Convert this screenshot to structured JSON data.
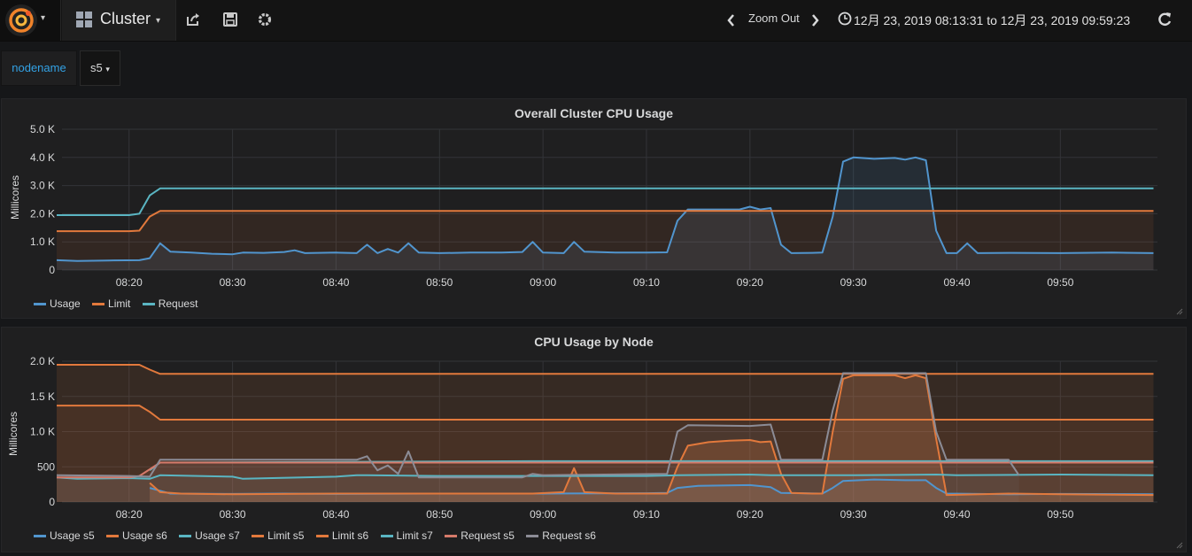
{
  "navbar": {
    "dashboard_title": "Cluster",
    "zoom_label": "Zoom Out",
    "time_range": "12月 23, 2019 08:13:31 to 12月 23, 2019 09:59:23"
  },
  "variables": {
    "label": "nodename",
    "value": "s5"
  },
  "colors": {
    "usage": "#5195ce",
    "orange": "#e2793c",
    "request": "#5ab5c2",
    "gray": "#8c8c96"
  },
  "panels": [
    {
      "title": "Overall Cluster CPU Usage",
      "ylabel": "Millicores",
      "legend": [
        {
          "name": "Usage",
          "color": "#5195ce"
        },
        {
          "name": "Limit",
          "color": "#e2793c"
        },
        {
          "name": "Request",
          "color": "#5ab5c2"
        }
      ]
    },
    {
      "title": "CPU Usage by Node",
      "ylabel": "Millicores",
      "legend": [
        {
          "name": "Usage s5",
          "color": "#5195ce"
        },
        {
          "name": "Usage s6",
          "color": "#e2793c"
        },
        {
          "name": "Usage s7",
          "color": "#5ab5c2"
        },
        {
          "name": "Limit s5",
          "color": "#e2793c"
        },
        {
          "name": "Limit s6",
          "color": "#e2793c"
        },
        {
          "name": "Limit s7",
          "color": "#5ab5c2"
        },
        {
          "name": "Request s5",
          "color": "#d67a6a"
        },
        {
          "name": "Request s6",
          "color": "#8c8c96"
        }
      ]
    }
  ],
  "chart_data": [
    {
      "type": "area",
      "title": "Overall Cluster CPU Usage",
      "ylabel": "Millicores",
      "xlim": [
        "08:13:31",
        "09:59:23"
      ],
      "ylim": [
        0,
        5000
      ],
      "xticks": [
        "08:20",
        "08:30",
        "08:40",
        "08:50",
        "09:00",
        "09:10",
        "09:20",
        "09:30",
        "09:40",
        "09:50"
      ],
      "yticks": [
        "0",
        "1.0 K",
        "2.0 K",
        "3.0 K",
        "4.0 K",
        "5.0 K"
      ],
      "grid": true,
      "legend_position": "bottom-left",
      "series": [
        {
          "name": "Usage",
          "color": "#5195ce",
          "points": [
            [
              "08:13",
              350
            ],
            [
              "08:15",
              320
            ],
            [
              "08:18",
              340
            ],
            [
              "08:21",
              350
            ],
            [
              "08:22",
              420
            ],
            [
              "08:23",
              950
            ],
            [
              "08:24",
              650
            ],
            [
              "08:26",
              620
            ],
            [
              "08:28",
              580
            ],
            [
              "08:30",
              560
            ],
            [
              "08:31",
              620
            ],
            [
              "08:33",
              610
            ],
            [
              "08:35",
              640
            ],
            [
              "08:36",
              700
            ],
            [
              "08:37",
              600
            ],
            [
              "08:40",
              620
            ],
            [
              "08:42",
              600
            ],
            [
              "08:43",
              900
            ],
            [
              "08:44",
              600
            ],
            [
              "08:45",
              750
            ],
            [
              "08:46",
              620
            ],
            [
              "08:47",
              950
            ],
            [
              "08:48",
              620
            ],
            [
              "08:50",
              600
            ],
            [
              "08:53",
              620
            ],
            [
              "08:56",
              620
            ],
            [
              "08:58",
              640
            ],
            [
              "08:59",
              1000
            ],
            [
              "09:00",
              620
            ],
            [
              "09:02",
              600
            ],
            [
              "09:03",
              1000
            ],
            [
              "09:04",
              650
            ],
            [
              "09:07",
              620
            ],
            [
              "09:10",
              620
            ],
            [
              "09:12",
              630
            ],
            [
              "09:13",
              1750
            ],
            [
              "09:14",
              2150
            ],
            [
              "09:17",
              2150
            ],
            [
              "09:19",
              2150
            ],
            [
              "09:20",
              2250
            ],
            [
              "09:21",
              2150
            ],
            [
              "09:22",
              2200
            ],
            [
              "09:23",
              900
            ],
            [
              "09:24",
              600
            ],
            [
              "09:26",
              610
            ],
            [
              "09:27",
              620
            ],
            [
              "09:28",
              1900
            ],
            [
              "09:29",
              3850
            ],
            [
              "09:30",
              4000
            ],
            [
              "09:32",
              3950
            ],
            [
              "09:34",
              3980
            ],
            [
              "09:35",
              3920
            ],
            [
              "09:36",
              4000
            ],
            [
              "09:37",
              3900
            ],
            [
              "09:38",
              1400
            ],
            [
              "09:39",
              600
            ],
            [
              "09:40",
              600
            ],
            [
              "09:41",
              950
            ],
            [
              "09:42",
              600
            ],
            [
              "09:45",
              610
            ],
            [
              "09:50",
              600
            ],
            [
              "09:55",
              620
            ],
            [
              "09:59",
              600
            ]
          ]
        },
        {
          "name": "Limit",
          "color": "#e2793c",
          "points": [
            [
              "08:13",
              1380
            ],
            [
              "08:20",
              1380
            ],
            [
              "08:21",
              1400
            ],
            [
              "08:22",
              1900
            ],
            [
              "08:23",
              2100
            ],
            [
              "09:59",
              2100
            ]
          ]
        },
        {
          "name": "Request",
          "color": "#5ab5c2",
          "points": [
            [
              "08:13",
              1950
            ],
            [
              "08:20",
              1950
            ],
            [
              "08:21",
              2000
            ],
            [
              "08:22",
              2650
            ],
            [
              "08:23",
              2900
            ],
            [
              "09:59",
              2900
            ]
          ]
        }
      ]
    },
    {
      "type": "area",
      "title": "CPU Usage by Node",
      "ylabel": "Millicores",
      "xlim": [
        "08:13:31",
        "09:59:23"
      ],
      "ylim": [
        0,
        2000
      ],
      "xticks": [
        "08:20",
        "08:30",
        "08:40",
        "08:50",
        "09:00",
        "09:10",
        "09:20",
        "09:30",
        "09:40",
        "09:50"
      ],
      "yticks": [
        "0",
        "500",
        "1.0 K",
        "1.5 K",
        "2.0 K"
      ],
      "grid": true,
      "legend_position": "bottom-left",
      "series": [
        {
          "name": "Usage s5",
          "color": "#5195ce",
          "points": [
            [
              "08:22",
              200
            ],
            [
              "08:23",
              160
            ],
            [
              "08:24",
              120
            ],
            [
              "08:30",
              115
            ],
            [
              "08:35",
              120
            ],
            [
              "08:40",
              115
            ],
            [
              "08:50",
              120
            ],
            [
              "09:00",
              120
            ],
            [
              "09:10",
              125
            ],
            [
              "09:12",
              130
            ],
            [
              "09:13",
              200
            ],
            [
              "09:15",
              230
            ],
            [
              "09:20",
              240
            ],
            [
              "09:22",
              210
            ],
            [
              "09:23",
              130
            ],
            [
              "09:27",
              120
            ],
            [
              "09:28",
              200
            ],
            [
              "09:29",
              300
            ],
            [
              "09:32",
              320
            ],
            [
              "09:35",
              310
            ],
            [
              "09:37",
              310
            ],
            [
              "09:38",
              200
            ],
            [
              "09:39",
              120
            ],
            [
              "09:45",
              110
            ],
            [
              "09:50",
              115
            ],
            [
              "09:59",
              110
            ]
          ]
        },
        {
          "name": "Usage s6",
          "color": "#e2793c",
          "points": [
            [
              "08:22",
              270
            ],
            [
              "08:23",
              140
            ],
            [
              "08:25",
              120
            ],
            [
              "08:30",
              110
            ],
            [
              "08:40",
              120
            ],
            [
              "08:50",
              120
            ],
            [
              "08:59",
              120
            ],
            [
              "09:02",
              140
            ],
            [
              "09:03",
              480
            ],
            [
              "09:04",
              140
            ],
            [
              "09:07",
              120
            ],
            [
              "09:12",
              120
            ],
            [
              "09:13",
              500
            ],
            [
              "09:14",
              800
            ],
            [
              "09:16",
              850
            ],
            [
              "09:18",
              870
            ],
            [
              "09:20",
              880
            ],
            [
              "09:21",
              850
            ],
            [
              "09:22",
              860
            ],
            [
              "09:23",
              400
            ],
            [
              "09:24",
              130
            ],
            [
              "09:26",
              120
            ],
            [
              "09:27",
              120
            ],
            [
              "09:28",
              1000
            ],
            [
              "09:29",
              1750
            ],
            [
              "09:30",
              1800
            ],
            [
              "09:32",
              1800
            ],
            [
              "09:34",
              1800
            ],
            [
              "09:35",
              1760
            ],
            [
              "09:36",
              1800
            ],
            [
              "09:37",
              1760
            ],
            [
              "09:38",
              900
            ],
            [
              "09:39",
              100
            ],
            [
              "09:45",
              120
            ],
            [
              "09:50",
              110
            ],
            [
              "09:59",
              100
            ]
          ]
        },
        {
          "name": "Usage s7",
          "color": "#5ab5c2",
          "points": [
            [
              "08:13",
              350
            ],
            [
              "08:15",
              330
            ],
            [
              "08:20",
              340
            ],
            [
              "08:22",
              330
            ],
            [
              "08:23",
              380
            ],
            [
              "08:30",
              360
            ],
            [
              "08:31",
              330
            ],
            [
              "08:40",
              360
            ],
            [
              "08:42",
              380
            ],
            [
              "08:43",
              380
            ],
            [
              "08:50",
              370
            ],
            [
              "09:00",
              370
            ],
            [
              "09:10",
              370
            ],
            [
              "09:13",
              380
            ],
            [
              "09:20",
              390
            ],
            [
              "09:22",
              380
            ],
            [
              "09:30",
              380
            ],
            [
              "09:38",
              390
            ],
            [
              "09:40",
              380
            ],
            [
              "09:50",
              390
            ],
            [
              "09:59",
              380
            ]
          ]
        },
        {
          "name": "Limit s5",
          "color": "#e2793c",
          "points": [
            [
              "08:13",
              1950
            ],
            [
              "08:21",
              1950
            ],
            [
              "08:22",
              1880
            ],
            [
              "08:23",
              1820
            ],
            [
              "09:59",
              1820
            ]
          ]
        },
        {
          "name": "Limit s6",
          "color": "#e2793c",
          "points": [
            [
              "08:13",
              1370
            ],
            [
              "08:21",
              1370
            ],
            [
              "08:22",
              1280
            ],
            [
              "08:23",
              1170
            ],
            [
              "09:59",
              1170
            ]
          ]
        },
        {
          "name": "Limit s7",
          "color": "#5ab5c2",
          "points": [
            [
              "08:22",
              450
            ],
            [
              "08:23",
              560
            ],
            [
              "08:59",
              580
            ],
            [
              "09:00",
              580
            ],
            [
              "09:59",
              580
            ]
          ]
        },
        {
          "name": "Request s5",
          "color": "#d67a6a",
          "points": [
            [
              "08:13",
              350
            ],
            [
              "08:20",
              350
            ],
            [
              "08:21",
              370
            ],
            [
              "08:23",
              560
            ],
            [
              "09:59",
              560
            ]
          ]
        },
        {
          "name": "Request s6",
          "color": "#8c8c96",
          "points": [
            [
              "08:13",
              380
            ],
            [
              "08:20",
              370
            ],
            [
              "08:22",
              360
            ],
            [
              "08:23",
              600
            ],
            [
              "08:42",
              600
            ],
            [
              "08:43",
              650
            ],
            [
              "08:44",
              450
            ],
            [
              "08:45",
              520
            ],
            [
              "08:46",
              400
            ],
            [
              "08:47",
              720
            ],
            [
              "08:48",
              350
            ],
            [
              "08:58",
              350
            ],
            [
              "08:59",
              400
            ],
            [
              "09:00",
              380
            ],
            [
              "09:12",
              400
            ],
            [
              "09:13",
              1000
            ],
            [
              "09:14",
              1090
            ],
            [
              "09:20",
              1080
            ],
            [
              "09:22",
              1100
            ],
            [
              "09:23",
              600
            ],
            [
              "09:27",
              600
            ],
            [
              "09:28",
              1300
            ],
            [
              "09:29",
              1830
            ],
            [
              "09:37",
              1830
            ],
            [
              "09:38",
              1000
            ],
            [
              "09:39",
              600
            ],
            [
              "09:45",
              600
            ],
            [
              "09:46",
              380
            ]
          ]
        }
      ]
    }
  ]
}
